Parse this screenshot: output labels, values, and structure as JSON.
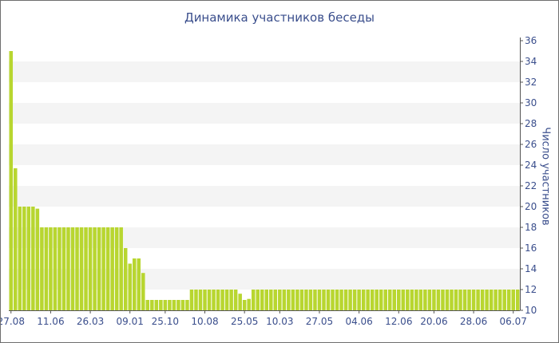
{
  "chart_data": {
    "type": "bar",
    "title": "Динамика участников беседы",
    "xlabel": "",
    "ylabel": "Число участников",
    "ylim": [
      10,
      36
    ],
    "yticks": [
      10,
      12,
      14,
      16,
      18,
      20,
      22,
      24,
      26,
      28,
      30,
      32,
      34,
      36
    ],
    "y_axis_side": "right",
    "grid": "alternating horizontal bands",
    "color": "#b8d630",
    "x_tick_labels": [
      {
        "label": "27.08",
        "index": 0
      },
      {
        "label": "11.06",
        "index": 9
      },
      {
        "label": "26.03",
        "index": 18
      },
      {
        "label": "09.01",
        "index": 27
      },
      {
        "label": "25.10",
        "index": 35
      },
      {
        "label": "10.08",
        "index": 44
      },
      {
        "label": "25.05",
        "index": 53
      },
      {
        "label": "10.03",
        "index": 61
      },
      {
        "label": "27.05",
        "index": 70
      },
      {
        "label": "04.06",
        "index": 79
      },
      {
        "label": "12.06",
        "index": 88
      },
      {
        "label": "20.06",
        "index": 96
      },
      {
        "label": "28.06",
        "index": 105
      },
      {
        "label": "06.07",
        "index": 114
      }
    ],
    "values": [
      35,
      23.7,
      20,
      20,
      20,
      20,
      19.8,
      18,
      18,
      18,
      18,
      18,
      18,
      18,
      18,
      18,
      18,
      18,
      18,
      18,
      18,
      18,
      18,
      18,
      18,
      18,
      16,
      14.5,
      15,
      15,
      13.6,
      11,
      11,
      11,
      11,
      11,
      11,
      11,
      11,
      11,
      11,
      12,
      12,
      12,
      12,
      12,
      12,
      12,
      12,
      12,
      12,
      12,
      11.6,
      11,
      11.1,
      12,
      12,
      12,
      12,
      12,
      12,
      12,
      12,
      12,
      12,
      12,
      12,
      12,
      12,
      12,
      12,
      12,
      12,
      12,
      12,
      12,
      12,
      12,
      12,
      12,
      12,
      12,
      12,
      12,
      12,
      12,
      12,
      12,
      12,
      12,
      12,
      12,
      12,
      12,
      12,
      12,
      12,
      12,
      12,
      12,
      12,
      12,
      12,
      12,
      12,
      12,
      12,
      12,
      12,
      12,
      12,
      12,
      12,
      12,
      12,
      12
    ]
  }
}
